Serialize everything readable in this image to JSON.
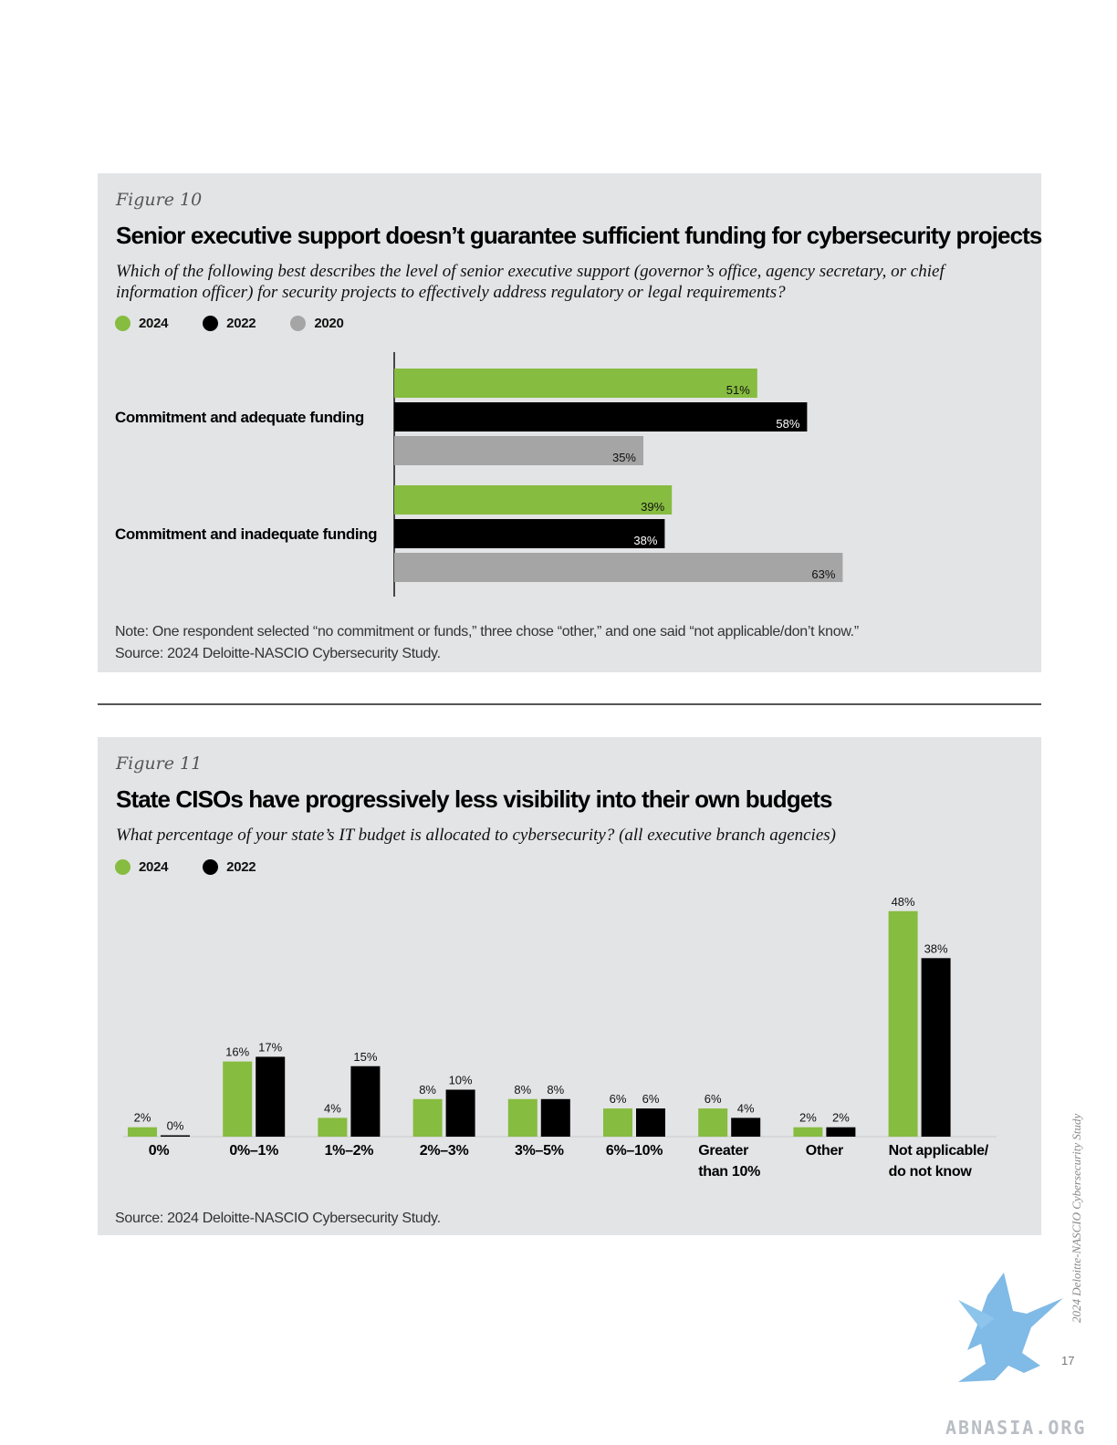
{
  "colors": {
    "y2024": "#86bc40",
    "y2022": "#000000",
    "y2020": "#a5a5a5",
    "panel": "#e3e4e5"
  },
  "figure10": {
    "label": "Figure 10",
    "title": "Senior executive support doesn’t guarantee sufficient funding for cybersecurity projects",
    "question": "Which of the following best describes the level of senior executive support (governor’s office, agency secretary, or chief information officer) for security projects to effectively address regulatory or legal requirements?",
    "legend": [
      "2024",
      "2022",
      "2020"
    ],
    "note": "Note: One respondent selected “no commitment or funds,” three chose “other,” and one said “not applicable/don’t know.”",
    "source": "Source: 2024 Deloitte-NASCIO Cybersecurity Study."
  },
  "figure11": {
    "label": "Figure 11",
    "title": "State CISOs have progressively less visibility into their own budgets",
    "question": "What percentage of your state’s IT budget is allocated to cybersecurity? (all executive branch agencies)",
    "legend": [
      "2024",
      "2022"
    ],
    "source": "Source: 2024 Deloitte-NASCIO Cybersecurity Study."
  },
  "chart_data": [
    {
      "type": "bar",
      "orientation": "horizontal",
      "title": "Senior executive support doesn’t guarantee sufficient funding for cybersecurity projects",
      "categories": [
        "Commitment and adequate funding",
        "Commitment and inadequate funding"
      ],
      "series": [
        {
          "name": "2024",
          "values": [
            51,
            39
          ],
          "labels": [
            "51%",
            "39%"
          ]
        },
        {
          "name": "2022",
          "values": [
            58,
            38
          ],
          "labels": [
            "58%",
            "38%"
          ]
        },
        {
          "name": "2020",
          "values": [
            35,
            63
          ],
          "labels": [
            "35%",
            "63%"
          ]
        }
      ],
      "unit": "%",
      "xlim": [
        0,
        100
      ]
    },
    {
      "type": "bar",
      "orientation": "vertical",
      "title": "State CISOs have progressively less visibility into their own budgets",
      "categories": [
        "0%",
        "0%–1%",
        "1%–2%",
        "2%–3%",
        "3%–5%",
        "6%–10%",
        "Greater than 10%",
        "Other",
        "Not applicable/ do not know"
      ],
      "category_lines": [
        [
          "0%"
        ],
        [
          "0%–1%"
        ],
        [
          "1%–2%"
        ],
        [
          "2%–3%"
        ],
        [
          "3%–5%"
        ],
        [
          "6%–10%"
        ],
        [
          "Greater",
          "than 10%"
        ],
        [
          "Other"
        ],
        [
          "Not applicable/",
          "do not know"
        ]
      ],
      "series": [
        {
          "name": "2024",
          "values": [
            2,
            16,
            4,
            8,
            8,
            6,
            6,
            2,
            48
          ],
          "labels": [
            "2%",
            "16%",
            "4%",
            "8%",
            "8%",
            "6%",
            "6%",
            "2%",
            "48%"
          ]
        },
        {
          "name": "2022",
          "values": [
            0,
            17,
            15,
            10,
            8,
            6,
            4,
            2,
            38
          ],
          "labels": [
            "0%",
            "17%",
            "15%",
            "10%",
            "8%",
            "6%",
            "4%",
            "2%",
            "38%"
          ]
        }
      ],
      "unit": "%",
      "ylim": [
        0,
        50
      ]
    }
  ],
  "footer": {
    "side_text": "2024 Deloitte-NASCIO Cybersecurity Study",
    "page_number": "17",
    "watermark": "ABNASIA.ORG"
  }
}
